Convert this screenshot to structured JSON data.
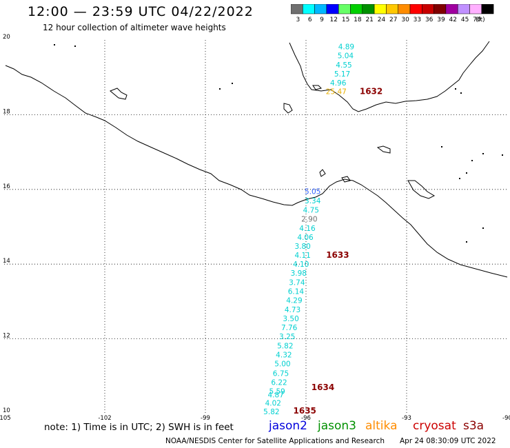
{
  "header": {
    "title": "12:00 — 23:59 UTC 04/22/2022",
    "subtitle": "12 hour collection of altimeter wave heights"
  },
  "legend": {
    "unit_label": "(ft)",
    "bins": [
      {
        "label": "3",
        "color": "#707070"
      },
      {
        "label": "6",
        "color": "#00ffff"
      },
      {
        "label": "9",
        "color": "#00b8ff"
      },
      {
        "label": "12",
        "color": "#0000ff"
      },
      {
        "label": "15",
        "color": "#66ff66"
      },
      {
        "label": "18",
        "color": "#00d000"
      },
      {
        "label": "21",
        "color": "#009000"
      },
      {
        "label": "24",
        "color": "#ffff00"
      },
      {
        "label": "27",
        "color": "#ffc800"
      },
      {
        "label": "30",
        "color": "#ff8c00"
      },
      {
        "label": "33",
        "color": "#ff0000"
      },
      {
        "label": "36",
        "color": "#c80000"
      },
      {
        "label": "39",
        "color": "#800000"
      },
      {
        "label": "42",
        "color": "#a000a0"
      },
      {
        "label": "45",
        "color": "#c090ff"
      },
      {
        "label": "70",
        "color": "#ffb0ff"
      },
      {
        "label": "",
        "color": "#000000"
      }
    ]
  },
  "axes": {
    "lon_ticks": [
      {
        "label": "-105",
        "value": -105
      },
      {
        "label": "-102",
        "value": -102
      },
      {
        "label": "-99",
        "value": -99
      },
      {
        "label": "-96",
        "value": -96
      },
      {
        "label": "-93",
        "value": -93
      },
      {
        "label": "-90",
        "value": -90
      }
    ],
    "lat_ticks": [
      {
        "label": "20",
        "value": 20
      },
      {
        "label": "18",
        "value": 18
      },
      {
        "label": "16",
        "value": 16
      },
      {
        "label": "14",
        "value": 14
      },
      {
        "label": "12",
        "value": 12
      },
      {
        "label": "10",
        "value": 10
      }
    ],
    "lon_range": [
      -105,
      -90
    ],
    "lat_range": [
      10,
      20
    ]
  },
  "colors": {
    "swh_cyan": "#00d0d0",
    "swh_blue": "#3060ff",
    "swh_gray": "#707070",
    "swh_yellow": "#e8b000",
    "time_label": "#8b0000",
    "coast": "#000000",
    "grid": "#000000"
  },
  "observations": [
    {
      "swh": "4.89",
      "lon": -94.8,
      "lat": 19.75,
      "color": "#00d0d0"
    },
    {
      "swh": "5.04",
      "lon": -94.82,
      "lat": 19.51,
      "color": "#00d0d0"
    },
    {
      "swh": "4.55",
      "lon": -94.87,
      "lat": 19.26,
      "color": "#00d0d0"
    },
    {
      "swh": "5.17",
      "lon": -94.92,
      "lat": 19.02,
      "color": "#00d0d0"
    },
    {
      "swh": "4.96",
      "lon": -95.04,
      "lat": 18.78,
      "color": "#00d0d0"
    },
    {
      "swh": "25.47",
      "lon": -95.1,
      "lat": 18.55,
      "color": "#e8b000"
    },
    {
      "swh": "5.05",
      "lon": -95.8,
      "lat": 15.88,
      "color": "#3060ff"
    },
    {
      "swh": "3.34",
      "lon": -95.8,
      "lat": 15.63,
      "color": "#00d0d0"
    },
    {
      "swh": "4.75",
      "lon": -95.85,
      "lat": 15.38,
      "color": "#00d0d0"
    },
    {
      "swh": "2.90",
      "lon": -95.9,
      "lat": 15.14,
      "color": "#707070"
    },
    {
      "swh": "4.16",
      "lon": -95.96,
      "lat": 14.89,
      "color": "#00d0d0"
    },
    {
      "swh": "4.06",
      "lon": -96.02,
      "lat": 14.65,
      "color": "#00d0d0"
    },
    {
      "swh": "3.80",
      "lon": -96.1,
      "lat": 14.41,
      "color": "#00d0d0"
    },
    {
      "swh": "4.11",
      "lon": -96.1,
      "lat": 14.17,
      "color": "#00d0d0"
    },
    {
      "swh": "4.10",
      "lon": -96.15,
      "lat": 13.93,
      "color": "#00d0d0"
    },
    {
      "swh": "3.98",
      "lon": -96.22,
      "lat": 13.69,
      "color": "#00d0d0"
    },
    {
      "swh": "3.74",
      "lon": -96.27,
      "lat": 13.44,
      "color": "#00d0d0"
    },
    {
      "swh": "6.14",
      "lon": -96.3,
      "lat": 13.2,
      "color": "#00d0d0"
    },
    {
      "swh": "4.29",
      "lon": -96.35,
      "lat": 12.96,
      "color": "#00d0d0"
    },
    {
      "swh": "4.73",
      "lon": -96.4,
      "lat": 12.71,
      "color": "#00d0d0"
    },
    {
      "swh": "3.50",
      "lon": -96.45,
      "lat": 12.47,
      "color": "#00d0d0"
    },
    {
      "swh": "7.76",
      "lon": -96.5,
      "lat": 12.23,
      "color": "#00d0d0"
    },
    {
      "swh": "3.25",
      "lon": -96.56,
      "lat": 11.99,
      "color": "#00d0d0"
    },
    {
      "swh": "5.82",
      "lon": -96.62,
      "lat": 11.74,
      "color": "#00d0d0"
    },
    {
      "swh": "4.32",
      "lon": -96.66,
      "lat": 11.5,
      "color": "#00d0d0"
    },
    {
      "swh": "5.00",
      "lon": -96.7,
      "lat": 11.26,
      "color": "#00d0d0"
    },
    {
      "swh": "6.75",
      "lon": -96.75,
      "lat": 11.01,
      "color": "#00d0d0"
    },
    {
      "swh": "6.22",
      "lon": -96.8,
      "lat": 10.77,
      "color": "#00d0d0"
    },
    {
      "swh": "5.59",
      "lon": -96.86,
      "lat": 10.53,
      "color": "#00d0d0"
    },
    {
      "swh": "4.87",
      "lon": -96.9,
      "lat": 10.43,
      "color": "#00d0d0"
    },
    {
      "swh": "4.02",
      "lon": -96.98,
      "lat": 10.21,
      "color": "#00d0d0"
    },
    {
      "swh": "5.82",
      "lon": -97.03,
      "lat": 9.98,
      "color": "#00d0d0"
    }
  ],
  "times": [
    {
      "label": "1632",
      "lon": -94.4,
      "lat": 18.55
    },
    {
      "label": "1633",
      "lon": -95.4,
      "lat": 14.17
    },
    {
      "label": "1634",
      "lon": -95.84,
      "lat": 10.63
    },
    {
      "label": "1635",
      "lon": -96.38,
      "lat": 10.0
    }
  ],
  "footer": {
    "note": "note:  1) Time is in UTC;  2) SWH is in feet",
    "satellites": [
      {
        "name": "jason2",
        "color": "#0000dd"
      },
      {
        "name": "jason3",
        "color": "#009000"
      },
      {
        "name": "altika",
        "color": "#ff8c00"
      },
      {
        "name": "cryosat",
        "color": "#cc0000"
      },
      {
        "name": "s3a",
        "color": "#8b0000"
      }
    ],
    "credit": "NOAA/NESDIS Center for Satellite Applications and Research",
    "timestamp": "Apr 24 08:30:09 UTC 2022"
  }
}
